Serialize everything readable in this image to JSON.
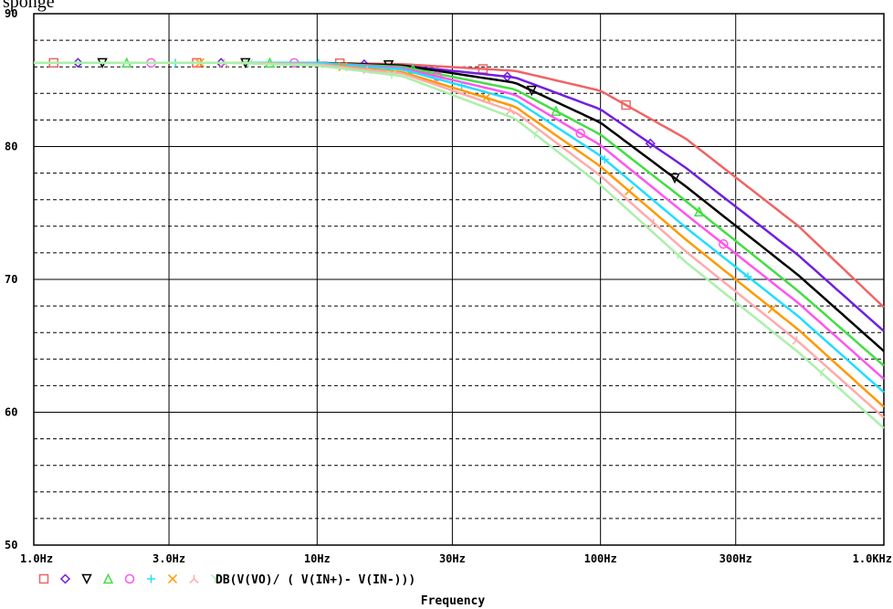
{
  "page": {
    "clipped_heading": "sponge"
  },
  "chart_data": {
    "type": "line",
    "xscale": "log",
    "xlim": [
      1,
      1000
    ],
    "ylim": [
      50,
      90
    ],
    "x_ticks": [
      {
        "value": 1,
        "label": "1.0Hz"
      },
      {
        "value": 3,
        "label": "3.0Hz"
      },
      {
        "value": 10,
        "label": "10Hz"
      },
      {
        "value": 30,
        "label": "30Hz"
      },
      {
        "value": 100,
        "label": "100Hz"
      },
      {
        "value": 300,
        "label": "300Hz"
      },
      {
        "value": 1000,
        "label": "1.0KHz"
      }
    ],
    "y_ticks": [
      {
        "value": 50,
        "label": "50"
      },
      {
        "value": 60,
        "label": "60"
      },
      {
        "value": 70,
        "label": "70"
      },
      {
        "value": 80,
        "label": "80"
      },
      {
        "value": 90,
        "label": "90"
      }
    ],
    "xlabel": "Frequency",
    "ylabel": "",
    "legend_text": "DB(V(VO)/ ( V(IN+)- V(IN-)))",
    "legend_position": "bottom-left",
    "grid": {
      "major": true,
      "minor_horizontal_dashed": true
    },
    "series": [
      {
        "marker": "square",
        "color": "#f06464",
        "values_at_x": [
          1,
          2,
          5,
          10,
          20,
          50,
          100,
          200,
          500,
          1000
        ],
        "y": [
          86.3,
          86.3,
          86.3,
          86.3,
          86.2,
          85.7,
          84.2,
          80.6,
          74.0,
          67.9
        ]
      },
      {
        "marker": "diamond",
        "color": "#7020e0",
        "values_at_x": [
          1,
          2,
          5,
          10,
          20,
          50,
          100,
          200,
          500,
          1000
        ],
        "y": [
          86.3,
          86.3,
          86.3,
          86.3,
          86.1,
          85.2,
          82.8,
          78.4,
          71.8,
          66.1
        ]
      },
      {
        "marker": "triangle-down",
        "color": "#000000",
        "values_at_x": [
          1,
          2,
          5,
          10,
          20,
          50,
          100,
          200,
          500,
          1000
        ],
        "y": [
          86.3,
          86.3,
          86.3,
          86.3,
          86.1,
          84.8,
          81.8,
          77.0,
          70.3,
          64.6
        ]
      },
      {
        "marker": "triangle-up",
        "color": "#44dd44",
        "values_at_x": [
          1,
          2,
          5,
          10,
          20,
          50,
          100,
          200,
          500,
          1000
        ],
        "y": [
          86.3,
          86.3,
          86.3,
          86.3,
          86.0,
          84.3,
          80.9,
          75.9,
          69.1,
          63.5
        ]
      },
      {
        "marker": "circle",
        "color": "#ff55ee",
        "values_at_x": [
          1,
          2,
          5,
          10,
          20,
          50,
          100,
          200,
          500,
          1000
        ],
        "y": [
          86.3,
          86.3,
          86.3,
          86.3,
          85.9,
          83.9,
          80.1,
          74.9,
          68.2,
          62.5
        ]
      },
      {
        "marker": "plus",
        "color": "#22ddff",
        "values_at_x": [
          1,
          2,
          5,
          10,
          20,
          50,
          100,
          200,
          500,
          1000
        ],
        "y": [
          86.3,
          86.3,
          86.3,
          86.3,
          85.8,
          83.5,
          79.3,
          73.9,
          67.2,
          61.5
        ]
      },
      {
        "marker": "x",
        "color": "#ff9900",
        "values_at_x": [
          1,
          2,
          5,
          10,
          20,
          50,
          100,
          200,
          500,
          1000
        ],
        "y": [
          86.3,
          86.3,
          86.3,
          86.2,
          85.6,
          83.0,
          78.5,
          73.0,
          66.2,
          60.4
        ]
      },
      {
        "marker": "inverted-y",
        "color": "#ffaaaa",
        "values_at_x": [
          1,
          2,
          5,
          10,
          20,
          50,
          100,
          200,
          500,
          1000
        ],
        "y": [
          86.3,
          86.3,
          86.3,
          86.2,
          85.5,
          82.6,
          77.8,
          72.1,
          65.3,
          59.6
        ]
      },
      {
        "marker": "y",
        "color": "#aaf0aa",
        "values_at_x": [
          1,
          2,
          5,
          10,
          20,
          50,
          100,
          200,
          500,
          1000
        ],
        "y": [
          86.3,
          86.3,
          86.3,
          86.1,
          85.3,
          82.1,
          77.1,
          71.3,
          64.5,
          58.8
        ]
      }
    ]
  }
}
